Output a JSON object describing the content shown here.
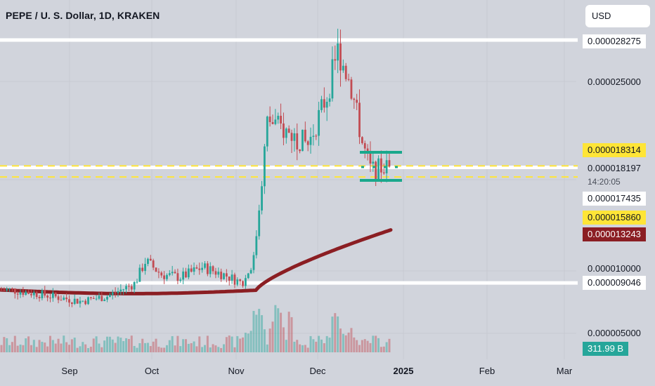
{
  "header": {
    "title": "PEPE / U. S. Dollar, 1D, KRAKEN",
    "currency": "USD"
  },
  "price_labels": {
    "resistance_top": "0.000028275",
    "tick_25": "0.000025000",
    "yellow_high": "0.000018314",
    "last_price": "0.000018197",
    "countdown": "14:20:05",
    "yellow_low": "0.000017435",
    "yellow_box": "0.000015860",
    "ma_value": "0.000013243",
    "tick_10": "0.000010000",
    "support_low": "0.000009046",
    "tick_5": "0.000005000",
    "volume": "311.99 B"
  },
  "time_axis": {
    "sep": "Sep",
    "oct": "Oct",
    "nov": "Nov",
    "dec": "Dec",
    "y2025": "2025",
    "feb": "Feb",
    "mar": "Mar"
  },
  "colors": {
    "background": "#d1d4dc",
    "up": "#26a69a",
    "down": "#c24b52",
    "ma": "#8b1e23",
    "yellow": "#ffe537",
    "teal": "#1aa88c",
    "white": "#ffffff"
  },
  "chart_data": {
    "type": "candlestick",
    "interval": "1D",
    "exchange": "KRAKEN",
    "symbol": "PEPE/USD",
    "x_ticks": [
      "Sep",
      "Oct",
      "Nov",
      "Dec",
      "2025",
      "Feb",
      "Mar"
    ],
    "y_ticks": [
      5e-06,
      1e-05,
      2.5e-05
    ],
    "close_path": [
      [
        "2024-08-10",
        8.5e-06
      ],
      [
        "2024-08-20",
        8.2e-06
      ],
      [
        "2024-08-28",
        7.9e-06
      ],
      [
        "2024-09-05",
        7.6e-06
      ],
      [
        "2024-09-15",
        8e-06
      ],
      [
        "2024-09-25",
        9e-06
      ],
      [
        "2024-09-29",
        1.08e-05
      ],
      [
        "2024-10-05",
        9.7e-06
      ],
      [
        "2024-10-12",
        9.5e-06
      ],
      [
        "2024-10-20",
        1.03e-05
      ],
      [
        "2024-10-28",
        9.7e-06
      ],
      [
        "2024-11-04",
        9e-06
      ],
      [
        "2024-11-08",
        1.1e-05
      ],
      [
        "2024-11-13",
        2.2e-05
      ],
      [
        "2024-11-20",
        2.1e-05
      ],
      [
        "2024-11-28",
        2e-05
      ],
      [
        "2024-12-05",
        2.4e-05
      ],
      [
        "2024-12-09",
        2.75e-05
      ],
      [
        "2024-12-14",
        2.45e-05
      ],
      [
        "2024-12-18",
        2e-05
      ],
      [
        "2024-12-21",
        1.8e-05
      ],
      [
        "2024-12-26",
        1.82e-05
      ]
    ],
    "moving_average": {
      "last_value": 1.3243e-05
    },
    "horizontal_levels": [
      {
        "value": 2.8275e-05,
        "style": "solid",
        "color": "white"
      },
      {
        "value": 1.8197e-05,
        "style": "solid",
        "color": "white"
      },
      {
        "value": 9.046e-06,
        "style": "solid",
        "color": "white"
      },
      {
        "value": 1.8314e-05,
        "style": "dashed",
        "color": "yellow"
      },
      {
        "value": 1.7435e-05,
        "style": "dashed",
        "color": "yellow"
      }
    ],
    "last_price": 1.8197e-05,
    "volume_last": "311.99 B"
  }
}
